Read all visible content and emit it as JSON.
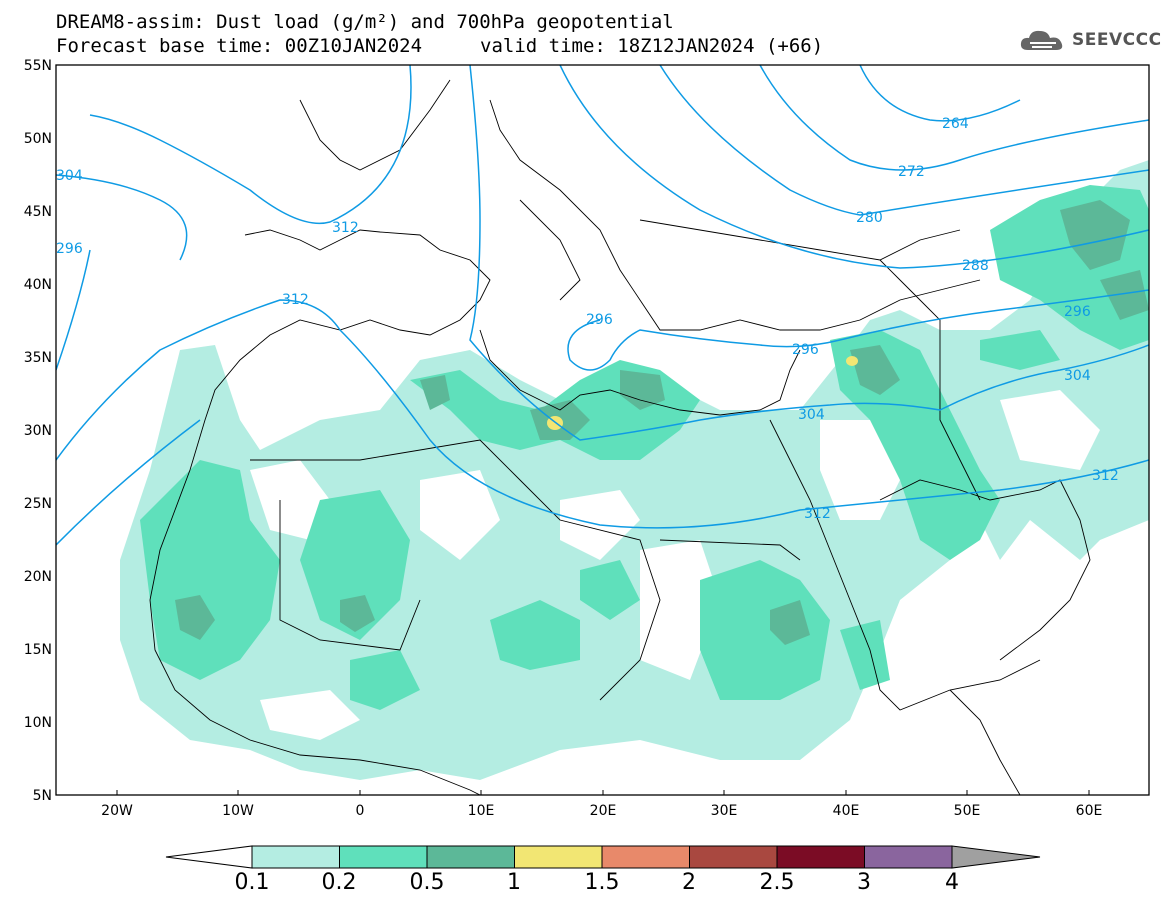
{
  "title": {
    "line1": "DREAM8-assim: Dust load (g/m²) and 700hPa geopotential",
    "line2a": "Forecast base time: 00Z10JAN2024",
    "line2b": "valid time: 18Z12JAN2024 (+66)"
  },
  "logo": {
    "text": "SEEVCCC",
    "icon": "cloud-icon"
  },
  "axes": {
    "lat_labels": [
      "55N",
      "50N",
      "45N",
      "40N",
      "35N",
      "30N",
      "25N",
      "20N",
      "15N",
      "10N",
      "5N"
    ],
    "lon_labels": [
      "20W",
      "10W",
      "0",
      "10E",
      "20E",
      "30E",
      "40E",
      "50E",
      "60E"
    ]
  },
  "contours": {
    "labels": [
      "264",
      "272",
      "280",
      "288",
      "296",
      "296",
      "304",
      "304",
      "312",
      "312",
      "312",
      "312",
      "296",
      "304",
      "296"
    ]
  },
  "colorbar": {
    "colors": [
      "#ffffff",
      "#b4ede2",
      "#5fe0bb",
      "#5cb898",
      "#f2e673",
      "#e8896a",
      "#a94840",
      "#7b0c25",
      "#8a659e",
      "#a0a0a0"
    ],
    "labels": [
      "0.1",
      "0.2",
      "0.5",
      "1",
      "1.5",
      "2",
      "2.5",
      "3",
      "4"
    ]
  },
  "chart_data": {
    "type": "heatmap",
    "title": "DREAM8-assim: Dust load (g/m²) and 700hPa geopotential",
    "x_range": [
      "25W",
      "65E"
    ],
    "y_range": [
      "5N",
      "55N"
    ],
    "levels": [
      0.1,
      0.2,
      0.5,
      1,
      1.5,
      2,
      2.5,
      3,
      4
    ],
    "geopotential_contours": [
      264,
      272,
      280,
      288,
      296,
      304,
      312
    ]
  }
}
